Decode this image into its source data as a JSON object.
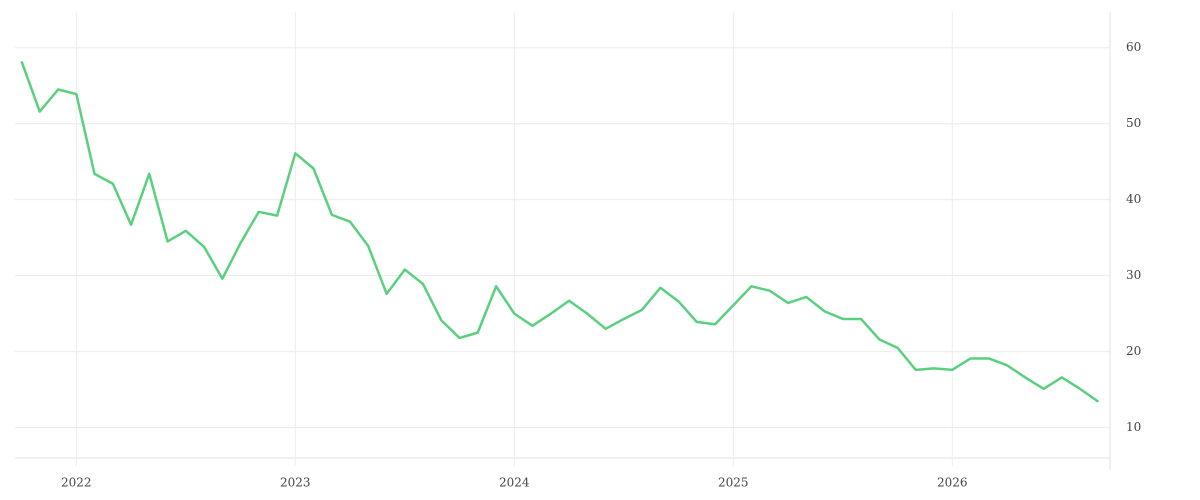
{
  "chart_data": {
    "type": "line",
    "color": "#5ad07f",
    "grid": true,
    "y_axis_side": "right",
    "x": [
      2021.75,
      2021.833,
      2021.917,
      2022,
      2022.083,
      2022.167,
      2022.25,
      2022.333,
      2022.417,
      2022.5,
      2022.583,
      2022.667,
      2022.75,
      2022.833,
      2022.917,
      2023,
      2023.083,
      2023.167,
      2023.25,
      2023.333,
      2023.417,
      2023.5,
      2023.583,
      2023.667,
      2023.75,
      2023.833,
      2023.917,
      2024,
      2024.083,
      2024.167,
      2024.25,
      2024.333,
      2024.417,
      2024.5,
      2024.583,
      2024.667,
      2024.75,
      2024.833,
      2024.917,
      2025,
      2025.083,
      2025.167,
      2025.25,
      2025.333,
      2025.417,
      2025.5,
      2025.583,
      2025.667,
      2025.75,
      2025.833,
      2025.917,
      2026,
      2026.083,
      2026.167,
      2026.25,
      2026.333,
      2026.417,
      2026.5,
      2026.583,
      2026.667
    ],
    "values": [
      58.2,
      51.6,
      54.5,
      53.9,
      43.4,
      42.1,
      36.7,
      43.4,
      34.5,
      35.9,
      33.8,
      29.6,
      34.3,
      38.4,
      37.9,
      46.1,
      44.1,
      38.0,
      37.1,
      33.9,
      27.6,
      30.8,
      28.9,
      24.1,
      21.8,
      22.5,
      28.6,
      25.0,
      23.4,
      25.0,
      26.7,
      25.0,
      23.0,
      24.3,
      25.5,
      28.4,
      26.6,
      23.9,
      23.6,
      26.1,
      28.6,
      28.0,
      26.4,
      27.2,
      25.3,
      24.3,
      24.3,
      21.6,
      20.5,
      17.6,
      17.8,
      17.6,
      19.1,
      19.1,
      18.2,
      16.6,
      15.1,
      16.6,
      15.1,
      13.4
    ],
    "xlim": [
      2021.72,
      2026.72
    ],
    "xticks": [
      2022,
      2023,
      2024,
      2025,
      2026
    ],
    "ylim": [
      6,
      64.7
    ],
    "yticks": [
      10,
      20,
      30,
      40,
      50,
      60
    ]
  }
}
